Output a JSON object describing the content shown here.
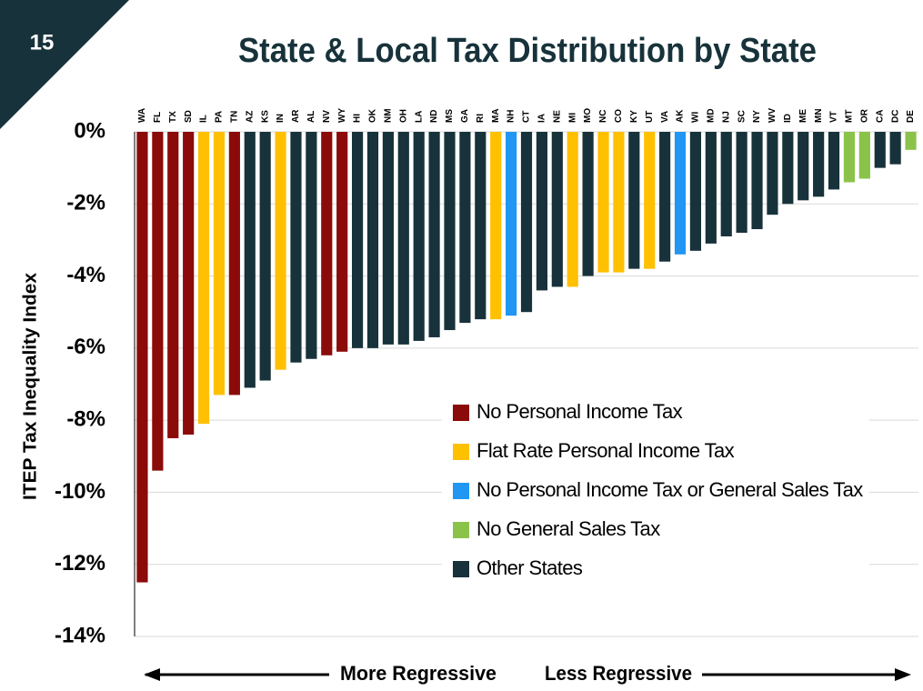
{
  "page_number": "15",
  "chart_data": {
    "type": "bar",
    "title": "State & Local Tax Distribution by State",
    "ylabel": "ITEP Tax Inequality Index",
    "categories": [
      "WA",
      "FL",
      "TX",
      "SD",
      "IL",
      "PA",
      "TN",
      "AZ",
      "KS",
      "IN",
      "AR",
      "AL",
      "NV",
      "WY",
      "HI",
      "OK",
      "NM",
      "OH",
      "LA",
      "ND",
      "MS",
      "GA",
      "RI",
      "MA",
      "NH",
      "CT",
      "IA",
      "NE",
      "MI",
      "MO",
      "NC",
      "CO",
      "KY",
      "UT",
      "VA",
      "AK",
      "WI",
      "MD",
      "NJ",
      "SC",
      "NY",
      "WV",
      "ID",
      "ME",
      "MN",
      "VT",
      "MT",
      "OR",
      "CA",
      "DC",
      "DE"
    ],
    "values": [
      -12.5,
      -9.4,
      -8.5,
      -8.4,
      -8.1,
      -7.3,
      -7.3,
      -7.1,
      -6.9,
      -6.6,
      -6.4,
      -6.3,
      -6.2,
      -6.1,
      -6.0,
      -6.0,
      -5.9,
      -5.9,
      -5.8,
      -5.7,
      -5.5,
      -5.3,
      -5.2,
      -5.2,
      -5.1,
      -5.0,
      -4.4,
      -4.3,
      -4.3,
      -4.0,
      -3.9,
      -3.9,
      -3.8,
      -3.8,
      -3.6,
      -3.4,
      -3.3,
      -3.1,
      -2.9,
      -2.8,
      -2.7,
      -2.3,
      -2.0,
      -1.9,
      -1.8,
      -1.6,
      -1.4,
      -1.3,
      -1.0,
      -0.9,
      -0.5
    ],
    "groups": [
      0,
      0,
      0,
      0,
      1,
      1,
      0,
      4,
      4,
      1,
      4,
      4,
      0,
      0,
      4,
      4,
      4,
      4,
      4,
      4,
      4,
      4,
      4,
      1,
      2,
      4,
      4,
      4,
      1,
      4,
      1,
      1,
      4,
      1,
      4,
      2,
      4,
      4,
      4,
      4,
      4,
      4,
      4,
      4,
      4,
      4,
      3,
      3,
      4,
      4,
      3
    ],
    "legend": [
      {
        "name": "No Personal Income Tax",
        "color": "#8b0a0a"
      },
      {
        "name": "Flat Rate Personal Income Tax",
        "color": "#ffc000"
      },
      {
        "name": "No Personal Income Tax or General Sales Tax",
        "color": "#2196f3"
      },
      {
        "name": "No General Sales Tax",
        "color": "#8bc34a"
      },
      {
        "name": "Other States",
        "color": "#17323a"
      }
    ],
    "ylim": [
      -14,
      0
    ],
    "yticks": [
      {
        "value": 0,
        "label": "0%"
      },
      {
        "value": -2,
        "label": "-2%"
      },
      {
        "value": -4,
        "label": "-4%"
      },
      {
        "value": -6,
        "label": "-6%"
      },
      {
        "value": -8,
        "label": "-8%"
      },
      {
        "value": -10,
        "label": "-10%"
      },
      {
        "value": -12,
        "label": "-12%"
      },
      {
        "value": -14,
        "label": "-14%"
      }
    ],
    "grid": true,
    "annotations": [
      "More Regressive",
      "Less Regressive"
    ]
  }
}
